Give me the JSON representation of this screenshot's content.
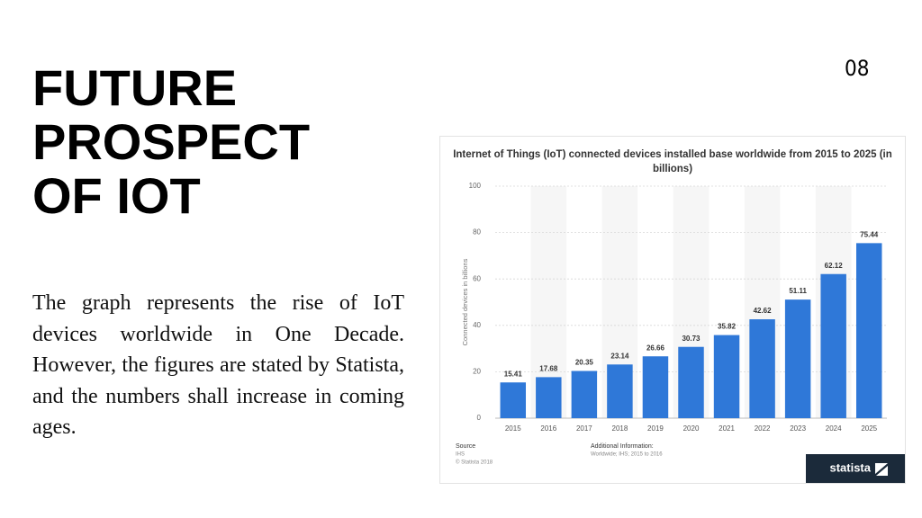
{
  "slide": {
    "title": "FUTURE PROSPECT OF IOT",
    "page_number": "08",
    "body": "The graph represents the rise of IoT devices worldwide in One Decade. However, the figures are stated by Statista, and the numbers shall increase in coming ages."
  },
  "chart_data": {
    "type": "bar",
    "title": "Internet of Things (IoT) connected devices installed base worldwide from 2015 to 2025 (in billions)",
    "y_label": "Connected devices in billions",
    "categories": [
      "2015",
      "2016",
      "2017",
      "2018",
      "2019",
      "2020",
      "2021",
      "2022",
      "2023",
      "2024",
      "2025"
    ],
    "values": [
      15.41,
      17.68,
      20.35,
      23.14,
      26.66,
      30.73,
      35.82,
      42.62,
      51.11,
      62.12,
      75.44
    ],
    "color": "#2f78d8",
    "ylim": [
      0,
      100
    ],
    "yticks": [
      0,
      20,
      40,
      60,
      80,
      100
    ],
    "grid": true
  },
  "chart_footer": {
    "source_label": "Source",
    "source": "IHS",
    "copyright": "© Statista 2018",
    "additional_label": "Additional Information:",
    "additional": "Worldwide; IHS; 2015 to 2016",
    "brand": "statista"
  }
}
